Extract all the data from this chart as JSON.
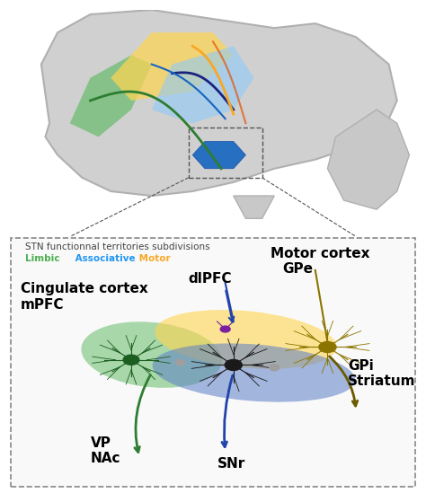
{
  "fig_bg": "#ffffff",
  "box_bg": "#f8f8f8",
  "title_text": "STN functionnal territories subdivisions",
  "legend_limbic": "Limbic",
  "legend_assoc": " Associative",
  "legend_motor": " Motor",
  "limbic_color": "#4caf50",
  "assoc_color": "#2196f3",
  "motor_color": "#ffc107",
  "green_color": "#3a8a3a",
  "blue_color": "#2244aa",
  "gold_color": "#8B7500",
  "dark_gold": "#6b5a00",
  "labels": {
    "motor_cortex": "Motor cortex",
    "GPe": "GPe",
    "dlPFC": "dlPFC",
    "cingulate": "Cingulate cortex\nmPFC",
    "GPi_striatum": "GPi\nStriatum",
    "VP_NAc": "VP\nNAc",
    "SNr": "SNr"
  }
}
